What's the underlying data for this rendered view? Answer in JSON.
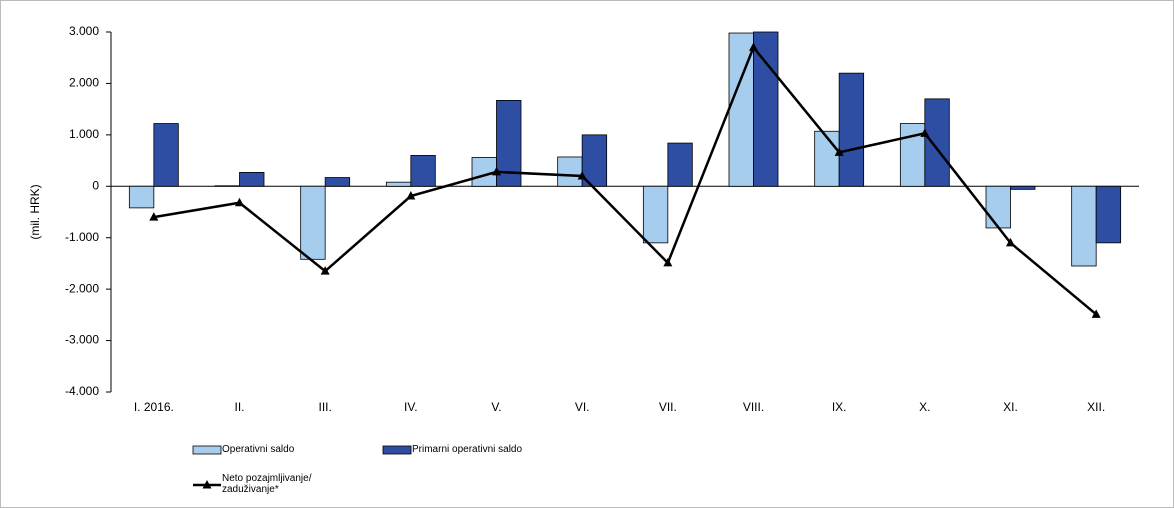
{
  "chart_data": {
    "type": "bar-line",
    "y_label": "(mil. HRK)",
    "categories": [
      "I. 2016.",
      "II.",
      "III.",
      "IV.",
      "V.",
      "VI.",
      "VII.",
      "VIII.",
      "IX.",
      "X.",
      "XI.",
      "XII."
    ],
    "series": [
      {
        "name": "Operativni saldo",
        "type": "bar",
        "color": "#a6cdee",
        "values": [
          -420,
          10,
          -1420,
          80,
          560,
          570,
          -1100,
          2980,
          1070,
          1220,
          -810,
          -1550
        ]
      },
      {
        "name": "Primarni operativni saldo",
        "type": "bar",
        "color": "#2e4ea3",
        "values": [
          1220,
          270,
          170,
          600,
          1670,
          1000,
          840,
          3000,
          2200,
          1700,
          -60,
          -1100
        ]
      },
      {
        "name": "Neto pozajmljivanje/ zaduživanje*",
        "type": "line",
        "color": "#000000",
        "values": [
          -600,
          -320,
          -1650,
          -190,
          280,
          200,
          -1490,
          2700,
          660,
          1030,
          -1100,
          -2490
        ]
      }
    ],
    "ylim": [
      -4000,
      3000
    ],
    "yticks": [
      {
        "value": -4000,
        "label": "-4.000"
      },
      {
        "value": -3000,
        "label": "-3.000"
      },
      {
        "value": -2000,
        "label": "-2.000"
      },
      {
        "value": -1000,
        "label": "-1.000"
      },
      0,
      {
        "value": 1000,
        "label": "1.000"
      },
      {
        "value": 2000,
        "label": "2.000"
      },
      {
        "value": 3000,
        "label": "3.000"
      }
    ]
  }
}
